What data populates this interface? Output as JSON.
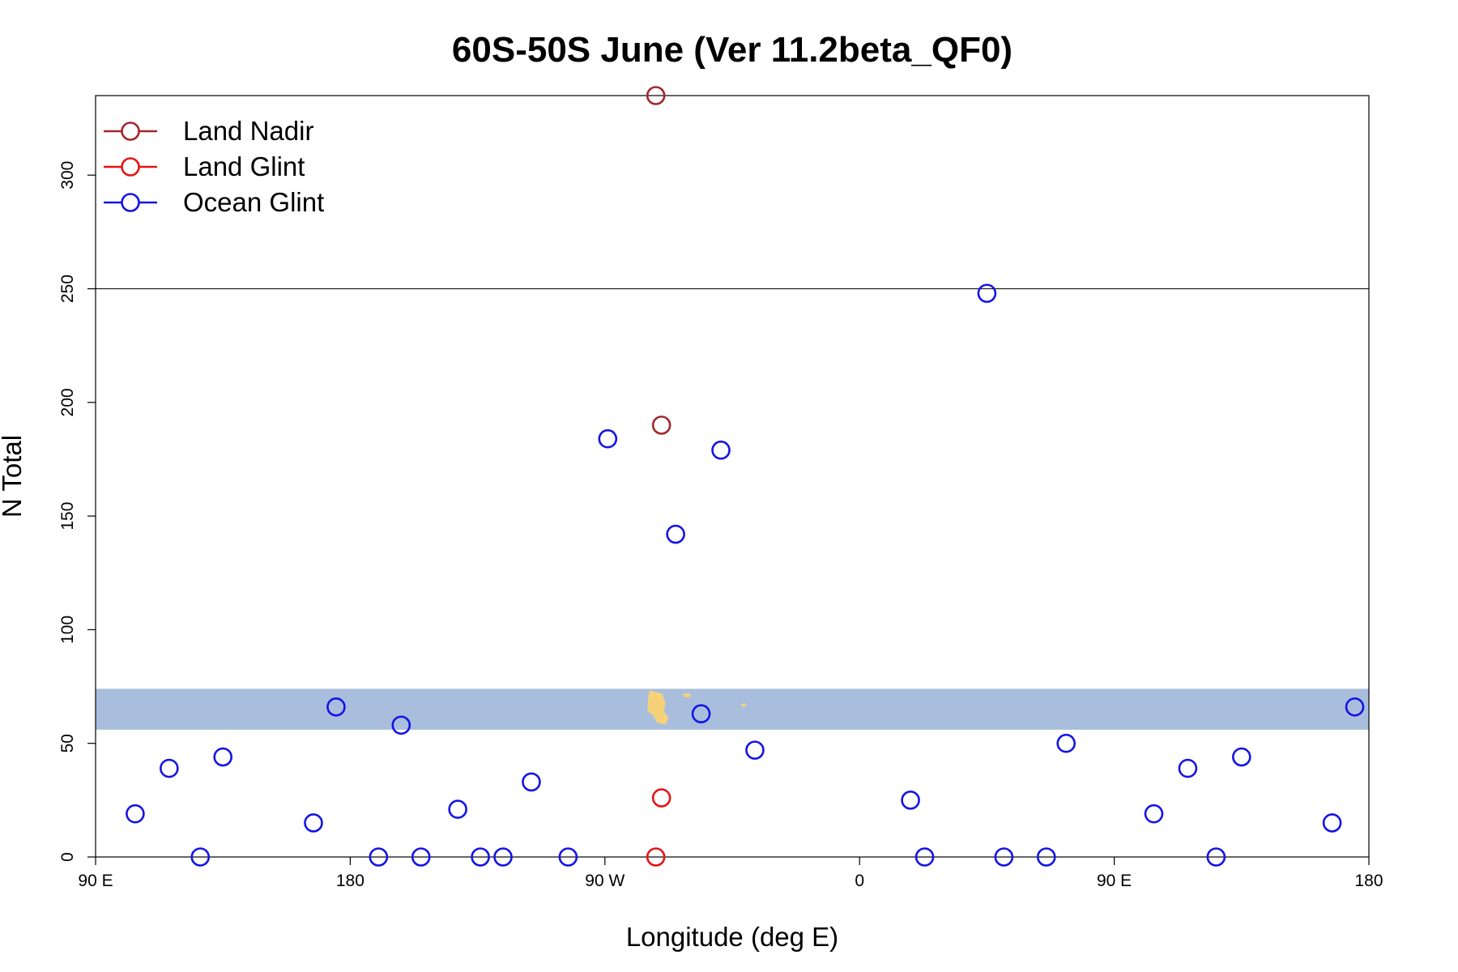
{
  "chart_data": {
    "type": "scatter",
    "title": "60S-50S June (Ver 11.2beta_QF0)",
    "xlabel": "Longitude (deg E)",
    "ylabel": "N Total",
    "xlim": [
      90,
      540
    ],
    "ylim": [
      0,
      335
    ],
    "x_ticks": [
      {
        "value": 90,
        "label": "90 E"
      },
      {
        "value": 180,
        "label": "180"
      },
      {
        "value": 270,
        "label": "90 W"
      },
      {
        "value": 360,
        "label": "0"
      },
      {
        "value": 450,
        "label": "90 E"
      },
      {
        "value": 540,
        "label": "180"
      }
    ],
    "y_ticks": [
      0,
      50,
      100,
      150,
      200,
      250,
      300
    ],
    "reference_line": {
      "y": 250
    },
    "map_band": {
      "y_range": [
        56,
        74
      ],
      "color": "#a8bedc",
      "land_color": "#f5d27a"
    },
    "legend": {
      "position": "top-left"
    },
    "colors": {
      "land_nadir": "#a0282d",
      "land_glint": "#e61414",
      "ocean_glint": "#1414e6"
    },
    "series": [
      {
        "name": "Land Nadir",
        "color": "#a0282d",
        "points": [
          {
            "x": 288,
            "y": 335
          },
          {
            "x": 290,
            "y": 190
          }
        ]
      },
      {
        "name": "Land Glint",
        "color": "#e61414",
        "points": [
          {
            "x": 290,
            "y": 26
          },
          {
            "x": 288,
            "y": 0
          }
        ]
      },
      {
        "name": "Ocean Glint",
        "color": "#1414e6",
        "points": [
          {
            "x": 104,
            "y": 19
          },
          {
            "x": 116,
            "y": 39
          },
          {
            "x": 127,
            "y": 0
          },
          {
            "x": 135,
            "y": 44
          },
          {
            "x": 167,
            "y": 15
          },
          {
            "x": 175,
            "y": 66
          },
          {
            "x": 190,
            "y": 0
          },
          {
            "x": 198,
            "y": 58
          },
          {
            "x": 205,
            "y": 0
          },
          {
            "x": 218,
            "y": 21
          },
          {
            "x": 226,
            "y": 0
          },
          {
            "x": 234,
            "y": 0
          },
          {
            "x": 244,
            "y": 33
          },
          {
            "x": 257,
            "y": 0
          },
          {
            "x": 271,
            "y": 184
          },
          {
            "x": 295,
            "y": 142
          },
          {
            "x": 304,
            "y": 63
          },
          {
            "x": 311,
            "y": 179
          },
          {
            "x": 323,
            "y": 47
          },
          {
            "x": 378,
            "y": 25
          },
          {
            "x": 383,
            "y": 0
          },
          {
            "x": 405,
            "y": 248
          },
          {
            "x": 411,
            "y": 0
          },
          {
            "x": 426,
            "y": 0
          },
          {
            "x": 433,
            "y": 50
          },
          {
            "x": 464,
            "y": 19
          },
          {
            "x": 476,
            "y": 39
          },
          {
            "x": 486,
            "y": 0
          },
          {
            "x": 495,
            "y": 44
          },
          {
            "x": 527,
            "y": 15
          },
          {
            "x": 535,
            "y": 66
          }
        ]
      }
    ]
  }
}
